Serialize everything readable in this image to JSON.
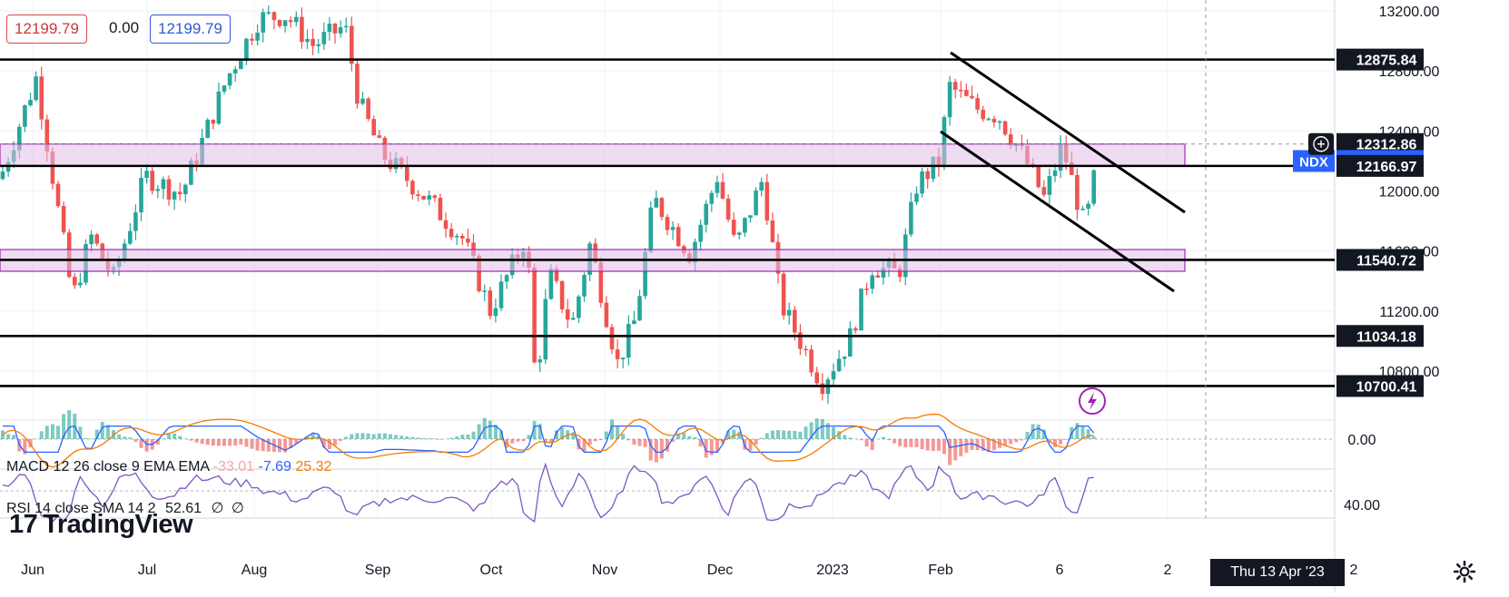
{
  "symbol": "NDX",
  "ohlc_header": {
    "open_box": "12199.79",
    "change": "0.00",
    "close_box": "12199.79"
  },
  "price_axis": {
    "ticks": [
      "13200.00",
      "12800.00",
      "12400.00",
      "12000.00",
      "11600.00",
      "11200.00",
      "10800.00"
    ],
    "labels": [
      {
        "text": "12875.84",
        "price": 12875.84,
        "style": "dark"
      },
      {
        "text": "12312.86",
        "price": 12312.86,
        "style": "dark"
      },
      {
        "text": "12199.79",
        "price": 12199.79,
        "style": "blue"
      },
      {
        "text": "12166.97",
        "price": 12166.97,
        "style": "dark"
      },
      {
        "text": "11540.72",
        "price": 11540.72,
        "style": "dark"
      },
      {
        "text": "11034.18",
        "price": 11034.18,
        "style": "dark"
      },
      {
        "text": "10700.41",
        "price": 10700.41,
        "style": "dark"
      }
    ]
  },
  "time_axis": {
    "labels": [
      "Jun",
      "Jul",
      "Aug",
      "Sep",
      "Oct",
      "Nov",
      "Dec",
      "2023",
      "Feb",
      "6",
      "2"
    ],
    "crosshair_date": "Thu 13 Apr '23"
  },
  "macd": {
    "label": "MACD 12 26 close 9 EMA EMA",
    "hist": "-33.01",
    "macd": "-7.69",
    "signal": "25.32",
    "axis_label": "0.00",
    "colors": {
      "macd": "#2962ff",
      "signal": "#f57c00"
    }
  },
  "rsi": {
    "label": "RSI 14 close SMA 14 2",
    "value": "52.61",
    "extra1": "∅",
    "extra2": "∅",
    "axis_label": "40.00",
    "color": "#7e57c2"
  },
  "branding": {
    "logo_text": "TradingView"
  },
  "icons": {
    "settings": "gear-icon",
    "alert": "lightning-icon",
    "add": "plus-circle-icon"
  },
  "colors": {
    "up": "#26a69a",
    "down": "#ef5350",
    "zone": "#e1bee7",
    "zone_border": "#9c27b0"
  },
  "chart_data": {
    "type": "candlestick",
    "symbol": "NDX",
    "horizontal_levels": [
      12875.84,
      12166.97,
      11540.72,
      11034.18,
      10700.41
    ],
    "zones": [
      [
        12166.97,
        12312.86
      ],
      [
        11465,
        11610
      ]
    ],
    "channel": {
      "upper": [
        [
          "2023-02-02",
          12900
        ],
        [
          "2023-03-30",
          12000
        ]
      ],
      "lower": [
        [
          "2023-01-31",
          12350
        ],
        [
          "2023-03-28",
          11320
        ]
      ]
    },
    "x_labels": [
      "Jun",
      "Jul",
      "Aug",
      "Sep",
      "Oct",
      "Nov",
      "Dec",
      "2023",
      "Feb",
      "6"
    ],
    "y_range": [
      10550,
      13250
    ],
    "last_price": 12199.79
  }
}
